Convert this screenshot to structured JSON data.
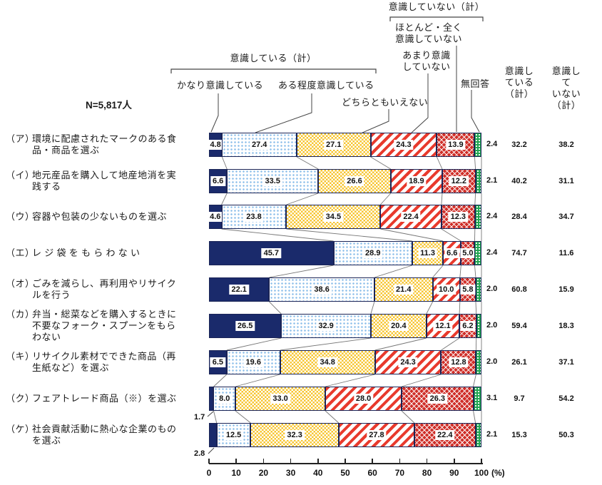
{
  "n_label": "N=5,817人",
  "legend": {
    "aware_total": "意識している（計）",
    "unaware_total": "意識していない（計）",
    "strongly": "かなり意識している",
    "somewhat": "ある程度意識している",
    "neither": "どちらともいえない",
    "not_much": "あまり意識\nしていない",
    "not_at_all": "ほとんど・全く\n意識していない",
    "no_answer": "無回答"
  },
  "summary_headers": {
    "aware": "意識し\nている\n（計）",
    "unaware": "意識して\nいない\n（計）"
  },
  "axis": {
    "ticks": [
      "0",
      "10",
      "20",
      "30",
      "40",
      "50",
      "60",
      "70",
      "80",
      "90",
      "100"
    ],
    "unit": "(%)"
  },
  "chart_data": {
    "type": "bar",
    "orientation": "horizontal-stacked",
    "unit": "%",
    "sample": "N=5,817人",
    "series_names": [
      "かなり意識している",
      "ある程度意識している",
      "どちらともいえない",
      "あまり意識していない",
      "ほとんど・全く意識していない",
      "無回答"
    ],
    "colors": {
      "strongly": "#1a2a6b",
      "somewhat": "#8fc0ea",
      "neither": "#f7c52f",
      "not_much": "#e83a2d",
      "not_at_all": "#cf2e28",
      "no_answer": "#21a551"
    },
    "xlim": [
      0,
      100
    ],
    "rows": [
      {
        "kana": "（ア）",
        "label": "環境に配慮されたマークのある食\n品・商品を選ぶ",
        "values": [
          4.8,
          27.4,
          27.1,
          24.3,
          13.9,
          2.4
        ],
        "aware": 32.2,
        "unaware": 38.2,
        "first_label_below": false
      },
      {
        "kana": "（イ）",
        "label": "地元産品を購入して地産地消を実\n践する",
        "values": [
          6.6,
          33.5,
          26.6,
          18.9,
          12.2,
          2.1
        ],
        "aware": 40.2,
        "unaware": 31.1,
        "first_label_below": false
      },
      {
        "kana": "（ウ）",
        "label": "容器や包装の少ないものを選ぶ",
        "values": [
          4.6,
          23.8,
          34.5,
          22.4,
          12.3,
          2.4
        ],
        "aware": 28.4,
        "unaware": 34.7,
        "first_label_below": false
      },
      {
        "kana": "（エ）",
        "label": "レ ジ 袋 を も ら わ な い",
        "values": [
          45.7,
          28.9,
          11.3,
          6.6,
          5.0,
          2.4
        ],
        "aware": 74.7,
        "unaware": 11.6,
        "first_label_below": false
      },
      {
        "kana": "（オ）",
        "label": "ごみを減らし、再利用やリサイク\nルを行う",
        "values": [
          22.1,
          38.6,
          21.4,
          10.0,
          5.8,
          2.0
        ],
        "aware": 60.8,
        "unaware": 15.9,
        "first_label_below": false
      },
      {
        "kana": "（カ）",
        "label": "弁当・総菜などを購入するときに\n不要なフォーク・スプーンをもら\nわない",
        "values": [
          26.5,
          32.9,
          20.4,
          12.1,
          6.2,
          2.0
        ],
        "aware": 59.4,
        "unaware": 18.3,
        "first_label_below": false
      },
      {
        "kana": "（キ）",
        "label": "リサイクル素材でできた商品（再\n生紙など）を選ぶ",
        "values": [
          6.5,
          19.6,
          34.8,
          24.3,
          12.8,
          2.0
        ],
        "aware": 26.1,
        "unaware": 37.1,
        "first_label_below": false
      },
      {
        "kana": "（ク）",
        "label": "フェアトレード商品（※）を選ぶ",
        "values": [
          1.7,
          8.0,
          33.0,
          28.0,
          26.3,
          3.1
        ],
        "aware": 9.7,
        "unaware": 54.2,
        "first_label_below": true
      },
      {
        "kana": "（ケ）",
        "label": "社会貢献活動に熱心な企業のもの\nを選ぶ",
        "values": [
          2.8,
          12.5,
          32.3,
          27.8,
          22.4,
          2.1
        ],
        "aware": 15.3,
        "unaware": 50.3,
        "first_label_below": true
      }
    ]
  }
}
